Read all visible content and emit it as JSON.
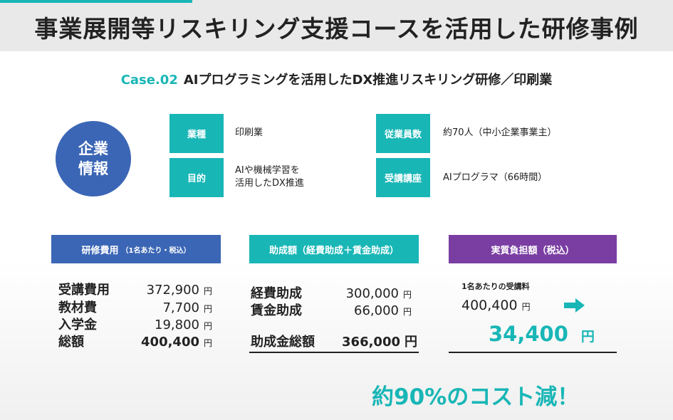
{
  "page_title": "事業展開等リスキリング支援コースを活用した研修事例",
  "case": {
    "number": "Case.02",
    "title": "AIプログラミングを活用したDX推進リスキリング研修／印刷業"
  },
  "company": {
    "label_line1": "企業",
    "label_line2": "情報",
    "industry_tag": "業種",
    "industry_value": "印刷業",
    "purpose_tag": "目的",
    "purpose_line1": "AIや機械学習を",
    "purpose_line2": "活用したDX推進",
    "employees_tag": "従業員数",
    "employees_value": "約70人（中小企業事業主）",
    "course_tag": "受講講座",
    "course_value": "AIプログラマ（66時間）"
  },
  "cost": {
    "header": "研修費用",
    "header_note": "（1名あたり・税込）",
    "rows": [
      {
        "label": "受講費用",
        "value": "372,900",
        "unit": "円"
      },
      {
        "label": "教材費",
        "value": "7,700",
        "unit": "円"
      },
      {
        "label": "入学金",
        "value": "19,800",
        "unit": "円"
      },
      {
        "label": "総額",
        "value": "400,400",
        "unit": "円"
      }
    ]
  },
  "subsidy": {
    "header": "助成額（経費助成＋賃金助成）",
    "rows": [
      {
        "label": "経費助成",
        "value": "300,000",
        "unit": "円"
      },
      {
        "label": "賃金助成",
        "value": "66,000",
        "unit": "円"
      }
    ],
    "total_label": "助成金総額",
    "total_value": "366,000",
    "total_unit": "円"
  },
  "burden": {
    "header": "実質負担額（税込）",
    "per_person_label": "1名あたりの受講料",
    "per_person_value": "400,400",
    "per_person_unit": "円",
    "actual_value": "34,400",
    "actual_unit": "円"
  },
  "conclusion": "約90%のコスト減！",
  "colors": {
    "teal": "#19b6b6",
    "blue": "#3b66b5",
    "purple": "#7a3ea3"
  }
}
